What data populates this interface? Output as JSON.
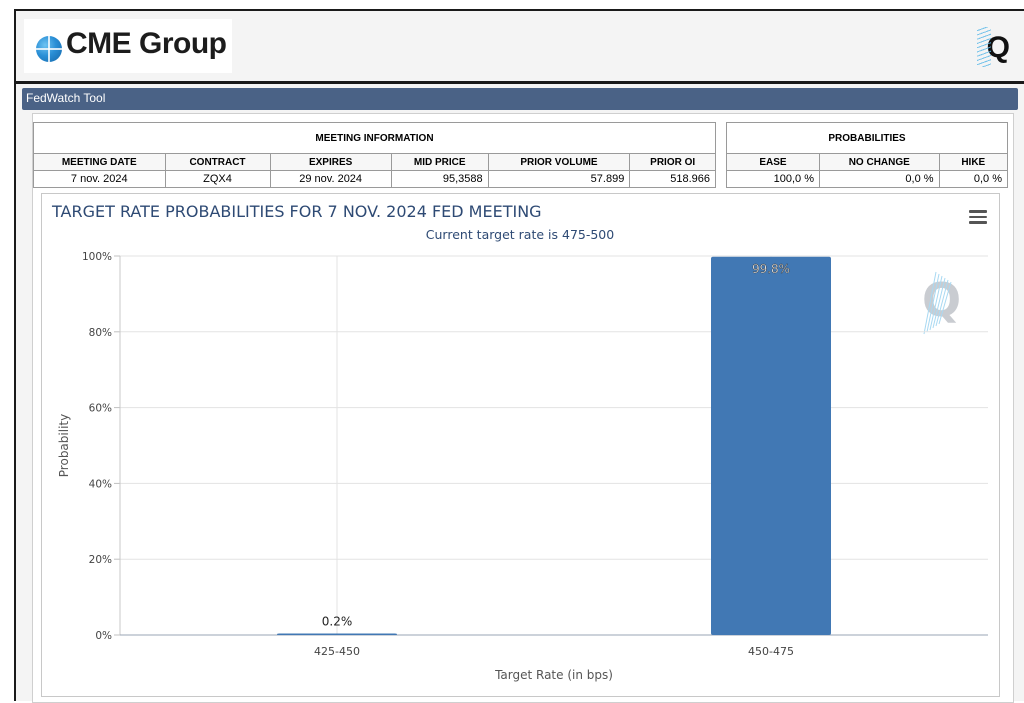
{
  "header": {
    "logo_text": "CME Group",
    "q_logo": "Q"
  },
  "toolbar": {
    "title": "FedWatch Tool"
  },
  "meeting_info": {
    "group_label": "MEETING INFORMATION",
    "columns": [
      "MEETING DATE",
      "CONTRACT",
      "EXPIRES",
      "MID PRICE",
      "PRIOR VOLUME",
      "PRIOR OI"
    ],
    "values": [
      "7 nov. 2024",
      "ZQX4",
      "29 nov. 2024",
      "95,3588",
      "57.899",
      "518.966"
    ]
  },
  "probabilities": {
    "group_label": "PROBABILITIES",
    "columns": [
      "EASE",
      "NO CHANGE",
      "HIKE"
    ],
    "values": [
      "100,0 %",
      "0,0 %",
      "0,0 %"
    ]
  },
  "chart_data": {
    "type": "bar",
    "title": "TARGET RATE PROBABILITIES FOR 7 NOV. 2024 FED MEETING",
    "subtitle": "Current target rate is 475-500",
    "xlabel": "Target Rate (in bps)",
    "ylabel": "Probability",
    "categories": [
      "425-450",
      "450-475"
    ],
    "values": [
      0.2,
      99.8
    ],
    "data_labels": [
      "0.2%",
      "99.8%"
    ],
    "ylim": [
      0,
      100
    ],
    "yticks": [
      0,
      20,
      40,
      60,
      80,
      100
    ],
    "ytick_labels": [
      "0%",
      "20%",
      "40%",
      "60%",
      "80%",
      "100%"
    ],
    "grid": true,
    "bar_color": "#4178b4",
    "watermark": "Q"
  }
}
